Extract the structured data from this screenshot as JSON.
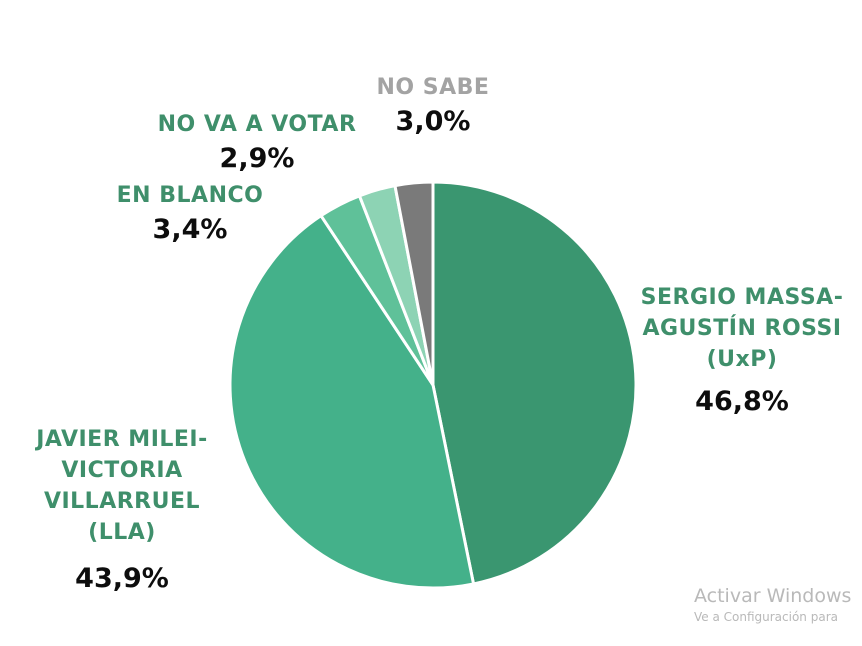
{
  "chart_data": {
    "type": "pie",
    "slices": [
      {
        "label_lines": [
          "SERGIO MASSA-",
          "AGUSTÍN ROSSI",
          "(UxP)"
        ],
        "value": 46.8,
        "value_label": "46,8%",
        "color": "#3a9670",
        "label_color": "#3f8f6b"
      },
      {
        "label_lines": [
          "JAVIER MILEI-",
          "VICTORIA",
          "VILLARRUEL",
          "(LLA)"
        ],
        "value": 43.9,
        "value_label": "43,9%",
        "color": "#44b18a",
        "label_color": "#3f8f6b"
      },
      {
        "label_lines": [
          "EN BLANCO"
        ],
        "value": 3.4,
        "value_label": "3,4%",
        "color": "#5fc199",
        "label_color": "#3f8f6b"
      },
      {
        "label_lines": [
          "NO VA A VOTAR"
        ],
        "value": 2.9,
        "value_label": "2,9%",
        "color": "#8dd3b4",
        "label_color": "#3f8f6b"
      },
      {
        "label_lines": [
          "NO SABE"
        ],
        "value": 3.0,
        "value_label": "3,0%",
        "color": "#7a7a7a",
        "label_color": "#a3a3a3",
        "value_color": "#a3a3a3"
      }
    ]
  },
  "watermark": {
    "title": "Activar Windows",
    "subtitle": "Ve a Configuración para"
  }
}
